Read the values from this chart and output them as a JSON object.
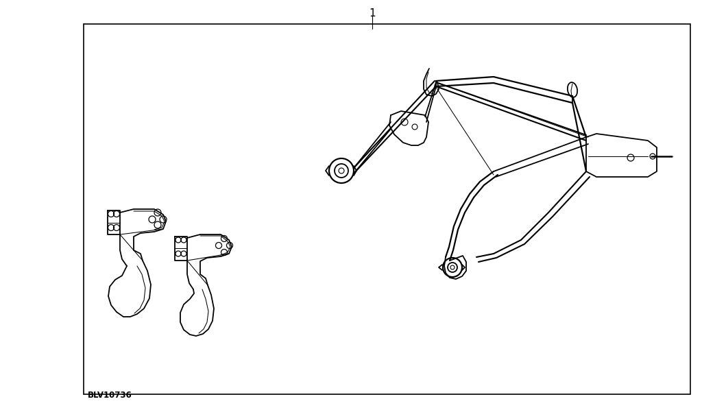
{
  "title": "1",
  "part_number": "BLV10736",
  "bg": "#ffffff",
  "lc": "#000000",
  "lw": 1.3,
  "tlw": 0.75,
  "fig_w": 10.24,
  "fig_h": 5.98,
  "dpi": 100
}
